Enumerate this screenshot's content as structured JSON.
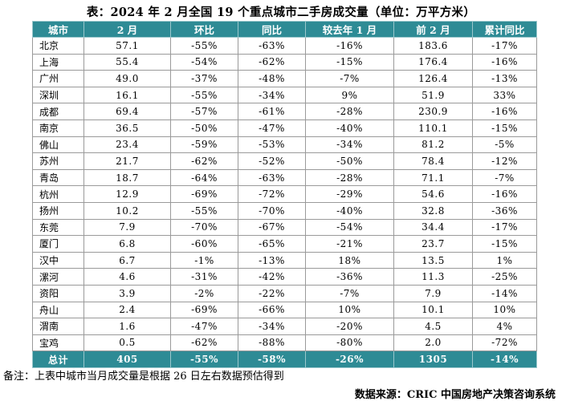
{
  "title": "表：2024 年 2 月全国 19 个重点城市二手房成交量（单位：万平方米）",
  "headers": [
    "城市",
    "2 月",
    "环比",
    "同比",
    "较去年 1 月",
    "前 2 月",
    "累计同比"
  ],
  "rows": [
    [
      "北京",
      "57.1",
      "-55%",
      "-63%",
      "-16%",
      "183.6",
      "-17%"
    ],
    [
      "上海",
      "55.4",
      "-54%",
      "-62%",
      "-15%",
      "176.4",
      "-16%"
    ],
    [
      "广州",
      "49.0",
      "-37%",
      "-48%",
      "-7%",
      "126.4",
      "-13%"
    ],
    [
      "深圳",
      "16.1",
      "-55%",
      "-34%",
      "9%",
      "51.9",
      "33%"
    ],
    [
      "成都",
      "69.4",
      "-57%",
      "-61%",
      "-28%",
      "230.9",
      "-16%"
    ],
    [
      "南京",
      "36.5",
      "-50%",
      "-47%",
      "-40%",
      "110.1",
      "-15%"
    ],
    [
      "佛山",
      "23.4",
      "-59%",
      "-53%",
      "-34%",
      "81.2",
      "-5%"
    ],
    [
      "苏州",
      "21.7",
      "-62%",
      "-52%",
      "-50%",
      "78.4",
      "-12%"
    ],
    [
      "青岛",
      "18.7",
      "-64%",
      "-63%",
      "-28%",
      "71.1",
      "-7%"
    ],
    [
      "杭州",
      "12.9",
      "-69%",
      "-72%",
      "-29%",
      "54.6",
      "-16%"
    ],
    [
      "扬州",
      "10.2",
      "-55%",
      "-70%",
      "-40%",
      "32.8",
      "-36%"
    ],
    [
      "东莞",
      "7.9",
      "-70%",
      "-67%",
      "-54%",
      "34.4",
      "-17%"
    ],
    [
      "厦门",
      "6.8",
      "-60%",
      "-65%",
      "-21%",
      "23.7",
      "-15%"
    ],
    [
      "汉中",
      "6.7",
      "-1%",
      "-13%",
      "18%",
      "13.5",
      "1%"
    ],
    [
      "漯河",
      "4.6",
      "-31%",
      "-42%",
      "-36%",
      "11.3",
      "-25%"
    ],
    [
      "资阳",
      "3.9",
      "-2%",
      "-22%",
      "-7%",
      "7.9",
      "-14%"
    ],
    [
      "舟山",
      "2.4",
      "-69%",
      "-66%",
      "10%",
      "10.1",
      "10%"
    ],
    [
      "渭南",
      "1.6",
      "-47%",
      "-34%",
      "-20%",
      "4.5",
      "4%"
    ],
    [
      "宝鸡",
      "0.5",
      "-62%",
      "-88%",
      "-80%",
      "2.0",
      "-72%"
    ]
  ],
  "total": [
    "总计",
    "405",
    "-55%",
    "-58%",
    "-26%",
    "1305",
    "-14%"
  ],
  "note": "备注：上表中城市当月成交量是根据 26 日左右数据预估得到",
  "source": "数据来源：CRIC 中国房地产决策咨询系统"
}
